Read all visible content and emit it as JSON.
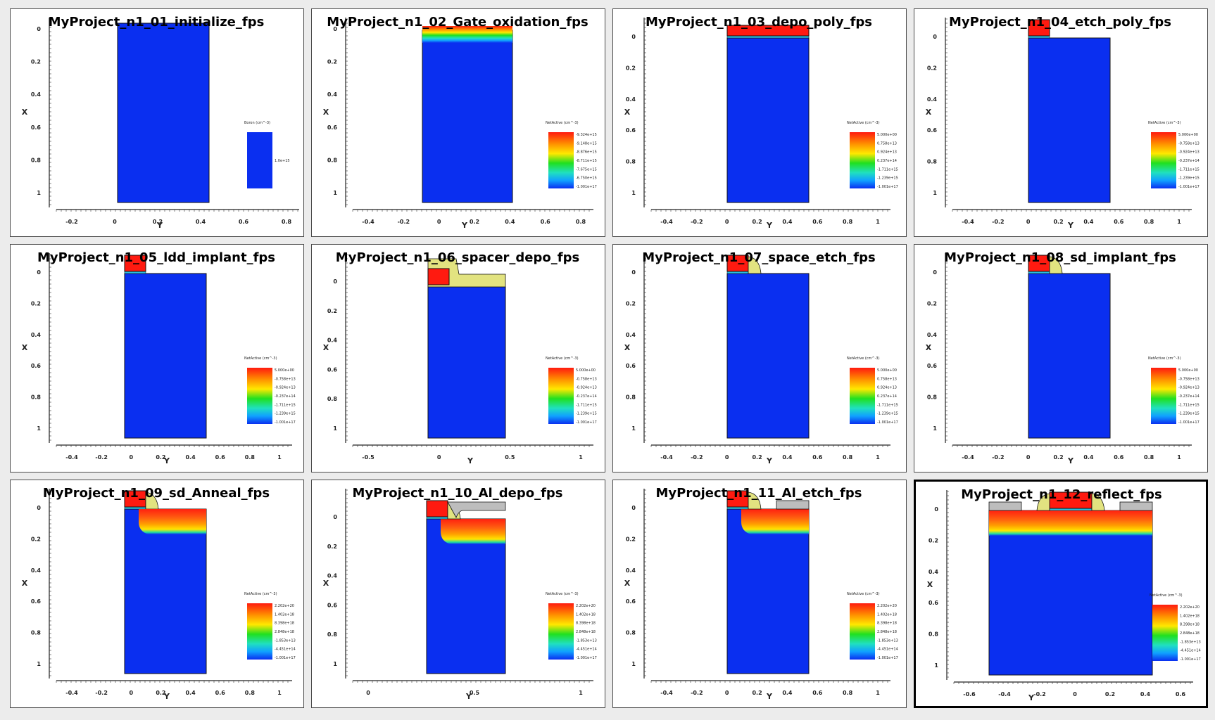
{
  "colors": {
    "substrate": "#0a2ff0",
    "poly": "#ff1a10",
    "spacer": "#e2e380",
    "aluminum": "#bdbdbd",
    "oxide_bar": "#28c0e0",
    "panel_border": "#4a4a4a",
    "background": "#ececec"
  },
  "panels": [
    {
      "title": "MyProject_n1_01_initialize_fps",
      "selected": false,
      "x_axis_label": "Y",
      "y_axis_label": "X",
      "x_ticks": [
        "-0.2",
        "0",
        "0.2",
        "0.4",
        "0.6",
        "0.8"
      ],
      "y_ticks": [
        "0",
        "0.2",
        "0.4",
        "0.6",
        "0.8",
        "1"
      ],
      "legend_title": "Boron (cm^-3)",
      "legend_values": [
        "1.0e+15"
      ],
      "legend_type": "solid"
    },
    {
      "title": "MyProject_n1_02_Gate_oxidation_fps",
      "selected": false,
      "x_axis_label": "Y",
      "y_axis_label": "X",
      "x_ticks": [
        "-0.4",
        "-0.2",
        "0",
        "0.2",
        "0.4",
        "0.6",
        "0.8"
      ],
      "y_ticks": [
        "0",
        "0.2",
        "0.4",
        "0.6",
        "0.8",
        "1"
      ],
      "legend_title": "NetActive (cm^-3)",
      "legend_values": [
        "-9.324e+15",
        "-9.148e+15",
        "-8.876e+15",
        "-8.711e+15",
        "-7.675e+15",
        "-6.750e+15",
        "-1.001e+17"
      ],
      "legend_type": "gradient"
    },
    {
      "title": "MyProject_n1_03_depo_poly_fps",
      "selected": false,
      "x_axis_label": "Y",
      "y_axis_label": "X",
      "x_ticks": [
        "-0.4",
        "-0.2",
        "0",
        "0.2",
        "0.4",
        "0.6",
        "0.8",
        "1"
      ],
      "y_ticks": [
        "0",
        "0.2",
        "0.4",
        "0.6",
        "0.8",
        "1"
      ],
      "legend_title": "NetActive (cm^-3)",
      "legend_values": [
        "5.000e+00",
        "0.758e+13",
        "0.924e+13",
        "0.237e+14",
        "-1.711e+15",
        "-1.239e+15",
        "-1.001e+17"
      ],
      "legend_type": "gradient"
    },
    {
      "title": "MyProject_n1_04_etch_poly_fps",
      "selected": false,
      "x_axis_label": "Y",
      "y_axis_label": "X",
      "x_ticks": [
        "-0.4",
        "-0.2",
        "0",
        "0.2",
        "0.4",
        "0.6",
        "0.8",
        "1"
      ],
      "y_ticks": [
        "0",
        "0.2",
        "0.4",
        "0.6",
        "0.8",
        "1"
      ],
      "legend_title": "NetActive (cm^-3)",
      "legend_values": [
        "5.000e+00",
        "-0.758e+13",
        "-0.924e+13",
        "-0.237e+14",
        "-1.711e+15",
        "-1.239e+15",
        "-1.001e+17"
      ],
      "legend_type": "gradient"
    },
    {
      "title": "MyProject_n1_05_ldd_implant_fps",
      "selected": false,
      "x_axis_label": "Y",
      "y_axis_label": "X",
      "x_ticks": [
        "-0.4",
        "-0.2",
        "0",
        "0.2",
        "0.4",
        "0.6",
        "0.8",
        "1"
      ],
      "y_ticks": [
        "0",
        "0.2",
        "0.4",
        "0.6",
        "0.8",
        "1"
      ],
      "legend_title": "NetActive (cm^-3)",
      "legend_values": [
        "5.000e+00",
        "-0.758e+13",
        "-0.924e+13",
        "-0.237e+14",
        "-1.711e+15",
        "-1.239e+15",
        "-1.001e+17"
      ],
      "legend_type": "gradient"
    },
    {
      "title": "MyProject_n1_06_spacer_depo_fps",
      "selected": false,
      "x_axis_label": "Y",
      "y_axis_label": "X",
      "x_ticks": [
        "-0.5",
        "0",
        "0.5",
        "1"
      ],
      "y_ticks": [
        "0",
        "0.2",
        "0.4",
        "0.6",
        "0.8",
        "1"
      ],
      "legend_title": "NetActive (cm^-3)",
      "legend_values": [
        "5.000e+00",
        "-0.758e+13",
        "-0.924e+13",
        "-0.237e+14",
        "-1.711e+15",
        "-1.239e+15",
        "-1.001e+17"
      ],
      "legend_type": "gradient"
    },
    {
      "title": "MyProject_n1_07_space_etch_fps",
      "selected": false,
      "x_axis_label": "Y",
      "y_axis_label": "X",
      "x_ticks": [
        "-0.4",
        "-0.2",
        "0",
        "0.2",
        "0.4",
        "0.6",
        "0.8",
        "1"
      ],
      "y_ticks": [
        "0",
        "0.2",
        "0.4",
        "0.6",
        "0.8",
        "1"
      ],
      "legend_title": "NetActive (cm^-3)",
      "legend_values": [
        "5.000e+00",
        "0.758e+13",
        "0.924e+13",
        "0.237e+14",
        "-1.711e+15",
        "-1.239e+15",
        "-1.001e+17"
      ],
      "legend_type": "gradient"
    },
    {
      "title": "MyProject_n1_08_sd_implant_fps",
      "selected": false,
      "x_axis_label": "Y",
      "y_axis_label": "X",
      "x_ticks": [
        "-0.4",
        "-0.2",
        "0",
        "0.2",
        "0.4",
        "0.6",
        "0.8",
        "1"
      ],
      "y_ticks": [
        "0",
        "0.2",
        "0.4",
        "0.6",
        "0.8",
        "1"
      ],
      "legend_title": "NetActive (cm^-3)",
      "legend_values": [
        "5.000e+00",
        "-0.758e+13",
        "-0.924e+13",
        "-0.237e+14",
        "-1.711e+15",
        "-1.239e+15",
        "-1.001e+17"
      ],
      "legend_type": "gradient"
    },
    {
      "title": "MyProject_n1_09_sd_Anneal_fps",
      "selected": false,
      "x_axis_label": "Y",
      "y_axis_label": "X",
      "x_ticks": [
        "-0.4",
        "-0.2",
        "0",
        "0.2",
        "0.4",
        "0.6",
        "0.8",
        "1"
      ],
      "y_ticks": [
        "0",
        "0.2",
        "0.4",
        "0.6",
        "0.8",
        "1"
      ],
      "legend_title": "NetActive (cm^-3)",
      "legend_values": [
        "2.202e+20",
        "1.402e+18",
        "8.398e+18",
        "2.848e+18",
        "-1.853e+13",
        "-4.451e+14",
        "-1.001e+17"
      ],
      "legend_type": "gradient"
    },
    {
      "title": "MyProject_n1_10_Al_depo_fps",
      "selected": false,
      "x_axis_label": "Y",
      "y_axis_label": "X",
      "x_ticks": [
        "0",
        "0.5",
        "1"
      ],
      "y_ticks": [
        "0",
        "0.2",
        "0.4",
        "0.6",
        "0.8",
        "1"
      ],
      "legend_title": "NetActive (cm^-3)",
      "legend_values": [
        "2.202e+20",
        "1.402e+18",
        "8.398e+18",
        "2.848e+18",
        "-1.853e+13",
        "-4.451e+14",
        "-1.001e+17"
      ],
      "legend_type": "gradient"
    },
    {
      "title": "MyProject_n1_11_Al_etch_fps",
      "selected": false,
      "x_axis_label": "Y",
      "y_axis_label": "X",
      "x_ticks": [
        "-0.4",
        "-0.2",
        "0",
        "0.2",
        "0.4",
        "0.6",
        "0.8",
        "1"
      ],
      "y_ticks": [
        "0",
        "0.2",
        "0.4",
        "0.6",
        "0.8",
        "1"
      ],
      "legend_title": "NetActive (cm^-3)",
      "legend_values": [
        "2.202e+20",
        "1.402e+18",
        "8.398e+18",
        "2.848e+18",
        "-1.853e+13",
        "-4.451e+14",
        "-1.001e+17"
      ],
      "legend_type": "gradient"
    },
    {
      "title": "MyProject_n1_12_reflect_fps",
      "selected": true,
      "x_axis_label": "Y",
      "y_axis_label": "X",
      "x_ticks": [
        "-0.6",
        "-0.4",
        "-0.2",
        "0",
        "0.2",
        "0.4",
        "0.6"
      ],
      "y_ticks": [
        "0",
        "0.2",
        "0.4",
        "0.6",
        "0.8",
        "1"
      ],
      "legend_title": "NetActive (cm^-3)",
      "legend_values": [
        "2.202e+20",
        "1.402e+18",
        "8.398e+18",
        "2.848e+18",
        "-1.853e+13",
        "-4.451e+14",
        "-1.001e+17"
      ],
      "legend_type": "gradient"
    }
  ]
}
